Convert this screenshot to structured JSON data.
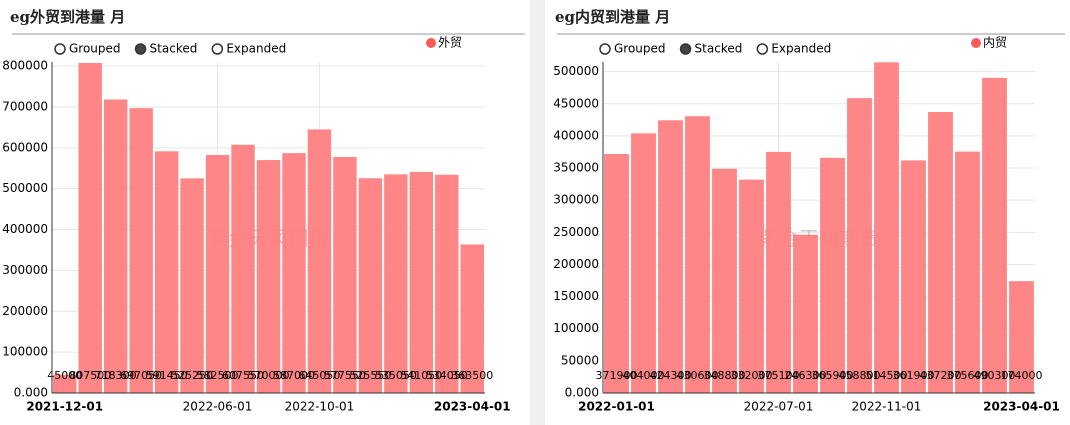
{
  "chart_data": [
    {
      "type": "bar",
      "title": "eg外贸到港量 月",
      "modes": [
        "Grouped",
        "Stacked",
        "Expanded"
      ],
      "selected_mode": "Stacked",
      "watermark": "紫金天风期货",
      "categories": [
        "2021-12-01",
        null,
        null,
        null,
        null,
        null,
        "2022-06-01",
        null,
        null,
        null,
        "2022-10-01",
        null,
        null,
        null,
        null,
        null,
        "2023-04-01"
      ],
      "series": [
        {
          "name": "外贸",
          "color": "#ff8080",
          "values": [
            45000,
            807500,
            718300,
            697050,
            591450,
            525250,
            582500,
            607550,
            570000,
            587000,
            645050,
            577550,
            525550,
            535050,
            541050,
            534050,
            363500
          ]
        }
      ],
      "ylim": [
        0,
        810000
      ],
      "yticks": [
        {
          "value": 0,
          "label": "0.000"
        },
        100000,
        200000,
        300000,
        400000,
        500000,
        600000,
        700000,
        800000
      ],
      "grid": true
    },
    {
      "type": "bar",
      "title": "eg内贸到港量 月",
      "modes": [
        "Grouped",
        "Stacked",
        "Expanded"
      ],
      "selected_mode": "Stacked",
      "watermark": "紫金天风期货",
      "categories": [
        "2022-01-01",
        null,
        null,
        null,
        null,
        null,
        "2022-07-01",
        null,
        null,
        null,
        "2022-11-01",
        null,
        null,
        null,
        null,
        "2023-04-01"
      ],
      "series": [
        {
          "name": "内贸",
          "color": "#ff8080",
          "values": [
            371900,
            404000,
            424300,
            430600,
            348800,
            332000,
            375100,
            246300,
            365900,
            458800,
            514500,
            361900,
            437200,
            375600,
            490300,
            174000
          ]
        }
      ],
      "ylim": [
        0,
        515000
      ],
      "yticks": [
        {
          "value": 0,
          "label": "0.000"
        },
        50000,
        100000,
        150000,
        200000,
        250000,
        300000,
        350000,
        400000,
        450000,
        500000
      ],
      "grid": true
    }
  ]
}
